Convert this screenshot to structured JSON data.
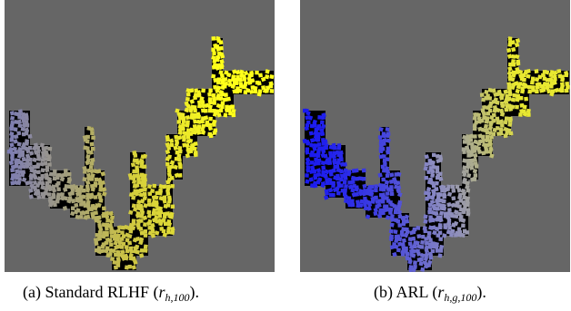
{
  "figure": {
    "background_color": "#666666",
    "tile_color": "#000000",
    "panels": [
      {
        "id": "a",
        "caption_prefix": "(a) Standard RLHF (",
        "caption_var": "r",
        "caption_sub": "h,100",
        "caption_suffix": ").",
        "gradient": {
          "start": "#7a7ab8",
          "mid": "#c8c048",
          "end": "#ffff1a"
        }
      },
      {
        "id": "b",
        "caption_prefix": "(b) ARL (",
        "caption_var": "r",
        "caption_sub": "h,g,100",
        "caption_suffix": ").",
        "gradient": {
          "start": "#1a1af0",
          "mid": "#8c8cc0",
          "end": "#e8e830"
        }
      }
    ]
  }
}
